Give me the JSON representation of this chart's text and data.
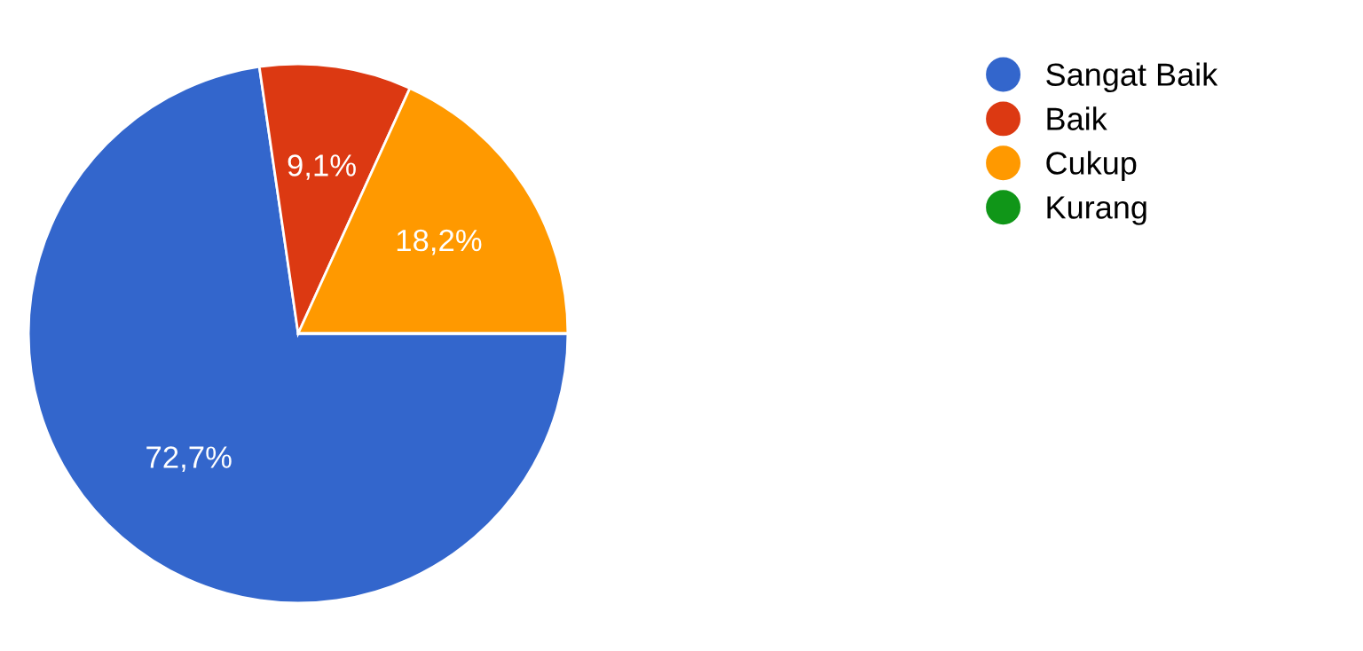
{
  "chart_data": {
    "type": "pie",
    "categories": [
      "Sangat Baik",
      "Baik",
      "Cukup",
      "Kurang"
    ],
    "values": [
      72.7,
      9.1,
      18.2,
      0
    ],
    "colors": [
      "#3366cc",
      "#dc3912",
      "#ff9900",
      "#109618"
    ],
    "value_labels": [
      "72,7%",
      "9,1%",
      "18,2%",
      null
    ],
    "legend": "right"
  }
}
